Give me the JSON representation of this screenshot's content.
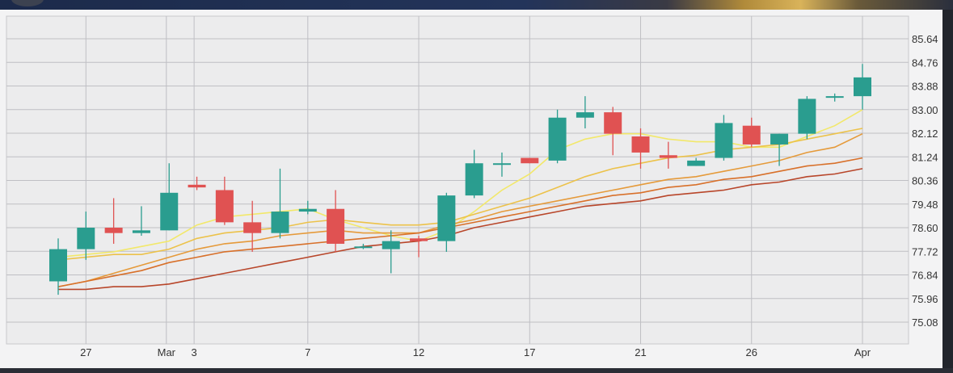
{
  "chart_data": {
    "type": "candlestick",
    "title": "",
    "xlabel": "",
    "ylabel": "",
    "ylim": [
      74.4,
      86.2
    ],
    "y_ticks": [
      "85.64",
      "84.76",
      "83.88",
      "83.00",
      "82.12",
      "81.24",
      "80.36",
      "79.48",
      "78.60",
      "77.72",
      "76.84",
      "75.96",
      "75.08"
    ],
    "x_ticks": [
      "27",
      "Mar",
      "3",
      "7",
      "12",
      "17",
      "21",
      "26",
      "Apr"
    ],
    "grid": true,
    "colors": {
      "up": "#2a9d8f",
      "down": "#e05252",
      "grid": "#bfbfc4",
      "text": "#333333"
    },
    "candles": [
      {
        "open": 76.6,
        "high": 78.2,
        "low": 76.1,
        "close": 77.8
      },
      {
        "open": 77.8,
        "high": 79.2,
        "low": 77.4,
        "close": 78.6
      },
      {
        "open": 78.6,
        "high": 79.7,
        "low": 78.0,
        "close": 78.4
      },
      {
        "open": 78.4,
        "high": 79.4,
        "low": 78.3,
        "close": 78.5
      },
      {
        "open": 78.5,
        "high": 81.0,
        "low": 78.5,
        "close": 79.9
      },
      {
        "open": 80.2,
        "high": 80.5,
        "low": 80.0,
        "close": 80.1
      },
      {
        "open": 80.0,
        "high": 80.5,
        "low": 78.7,
        "close": 78.8
      },
      {
        "open": 78.8,
        "high": 79.6,
        "low": 77.7,
        "close": 78.4
      },
      {
        "open": 78.4,
        "high": 80.8,
        "low": 78.2,
        "close": 79.2
      },
      {
        "open": 79.2,
        "high": 79.6,
        "low": 79.1,
        "close": 79.3
      },
      {
        "open": 79.3,
        "high": 80.0,
        "low": 77.7,
        "close": 78.0
      },
      {
        "open": 77.9,
        "high": 78.0,
        "low": 77.8,
        "close": 77.9
      },
      {
        "open": 77.8,
        "high": 78.5,
        "low": 76.9,
        "close": 78.1
      },
      {
        "open": 78.2,
        "high": 78.3,
        "low": 77.5,
        "close": 78.1
      },
      {
        "open": 78.1,
        "high": 79.9,
        "low": 77.7,
        "close": 79.8
      },
      {
        "open": 79.8,
        "high": 81.5,
        "low": 79.7,
        "close": 81.0
      },
      {
        "open": 81.0,
        "high": 81.4,
        "low": 80.5,
        "close": 81.0
      },
      {
        "open": 81.2,
        "high": 81.2,
        "low": 81.0,
        "close": 81.0
      },
      {
        "open": 81.1,
        "high": 83.0,
        "low": 81.0,
        "close": 82.7
      },
      {
        "open": 82.7,
        "high": 83.5,
        "low": 82.3,
        "close": 82.9
      },
      {
        "open": 82.9,
        "high": 83.1,
        "low": 81.3,
        "close": 82.1
      },
      {
        "open": 82.0,
        "high": 82.3,
        "low": 80.8,
        "close": 81.4
      },
      {
        "open": 81.3,
        "high": 81.8,
        "low": 80.8,
        "close": 81.2
      },
      {
        "open": 80.9,
        "high": 81.2,
        "low": 80.9,
        "close": 81.1
      },
      {
        "open": 81.2,
        "high": 82.8,
        "low": 81.1,
        "close": 82.5
      },
      {
        "open": 82.4,
        "high": 82.7,
        "low": 81.6,
        "close": 81.7
      },
      {
        "open": 81.7,
        "high": 82.1,
        "low": 80.9,
        "close": 82.1
      },
      {
        "open": 82.1,
        "high": 83.5,
        "low": 81.9,
        "close": 83.4
      },
      {
        "open": 83.5,
        "high": 83.6,
        "low": 83.3,
        "close": 83.5
      },
      {
        "open": 83.5,
        "high": 84.7,
        "low": 83.0,
        "close": 84.2
      }
    ],
    "moving_averages": [
      {
        "color": "#f2e86a",
        "values": [
          77.5,
          77.6,
          77.7,
          77.9,
          78.1,
          78.7,
          79.0,
          79.1,
          79.2,
          79.3,
          78.9,
          78.6,
          78.3,
          78.1,
          78.5,
          79.2,
          80.0,
          80.6,
          81.5,
          81.9,
          82.1,
          82.1,
          81.9,
          81.8,
          81.8,
          81.6,
          81.6,
          82.0,
          82.4,
          83.0
        ]
      },
      {
        "color": "#ecc24a",
        "values": [
          77.4,
          77.5,
          77.6,
          77.6,
          77.8,
          78.2,
          78.4,
          78.5,
          78.6,
          78.8,
          78.9,
          78.8,
          78.7,
          78.7,
          78.8,
          79.1,
          79.4,
          79.7,
          80.1,
          80.5,
          80.8,
          81.0,
          81.2,
          81.3,
          81.5,
          81.6,
          81.7,
          81.9,
          82.1,
          82.3
        ]
      },
      {
        "color": "#e59a3a",
        "values": [
          76.4,
          76.6,
          76.9,
          77.2,
          77.5,
          77.8,
          78.0,
          78.1,
          78.3,
          78.4,
          78.5,
          78.4,
          78.4,
          78.4,
          78.7,
          78.9,
          79.2,
          79.4,
          79.6,
          79.8,
          80.0,
          80.2,
          80.4,
          80.5,
          80.7,
          80.9,
          81.1,
          81.4,
          81.6,
          82.1
        ]
      },
      {
        "color": "#d8702a",
        "values": [
          76.4,
          76.6,
          76.8,
          77.0,
          77.3,
          77.5,
          77.7,
          77.8,
          77.9,
          78.0,
          78.1,
          78.2,
          78.3,
          78.4,
          78.6,
          78.8,
          79.0,
          79.2,
          79.4,
          79.6,
          79.8,
          79.9,
          80.1,
          80.2,
          80.4,
          80.5,
          80.7,
          80.9,
          81.0,
          81.2
        ]
      },
      {
        "color": "#b8462a",
        "values": [
          76.3,
          76.3,
          76.4,
          76.4,
          76.5,
          76.7,
          76.9,
          77.1,
          77.3,
          77.5,
          77.7,
          77.9,
          78.0,
          78.1,
          78.3,
          78.6,
          78.8,
          79.0,
          79.2,
          79.4,
          79.5,
          79.6,
          79.8,
          79.9,
          80.0,
          80.2,
          80.3,
          80.5,
          80.6,
          80.8
        ]
      }
    ]
  }
}
